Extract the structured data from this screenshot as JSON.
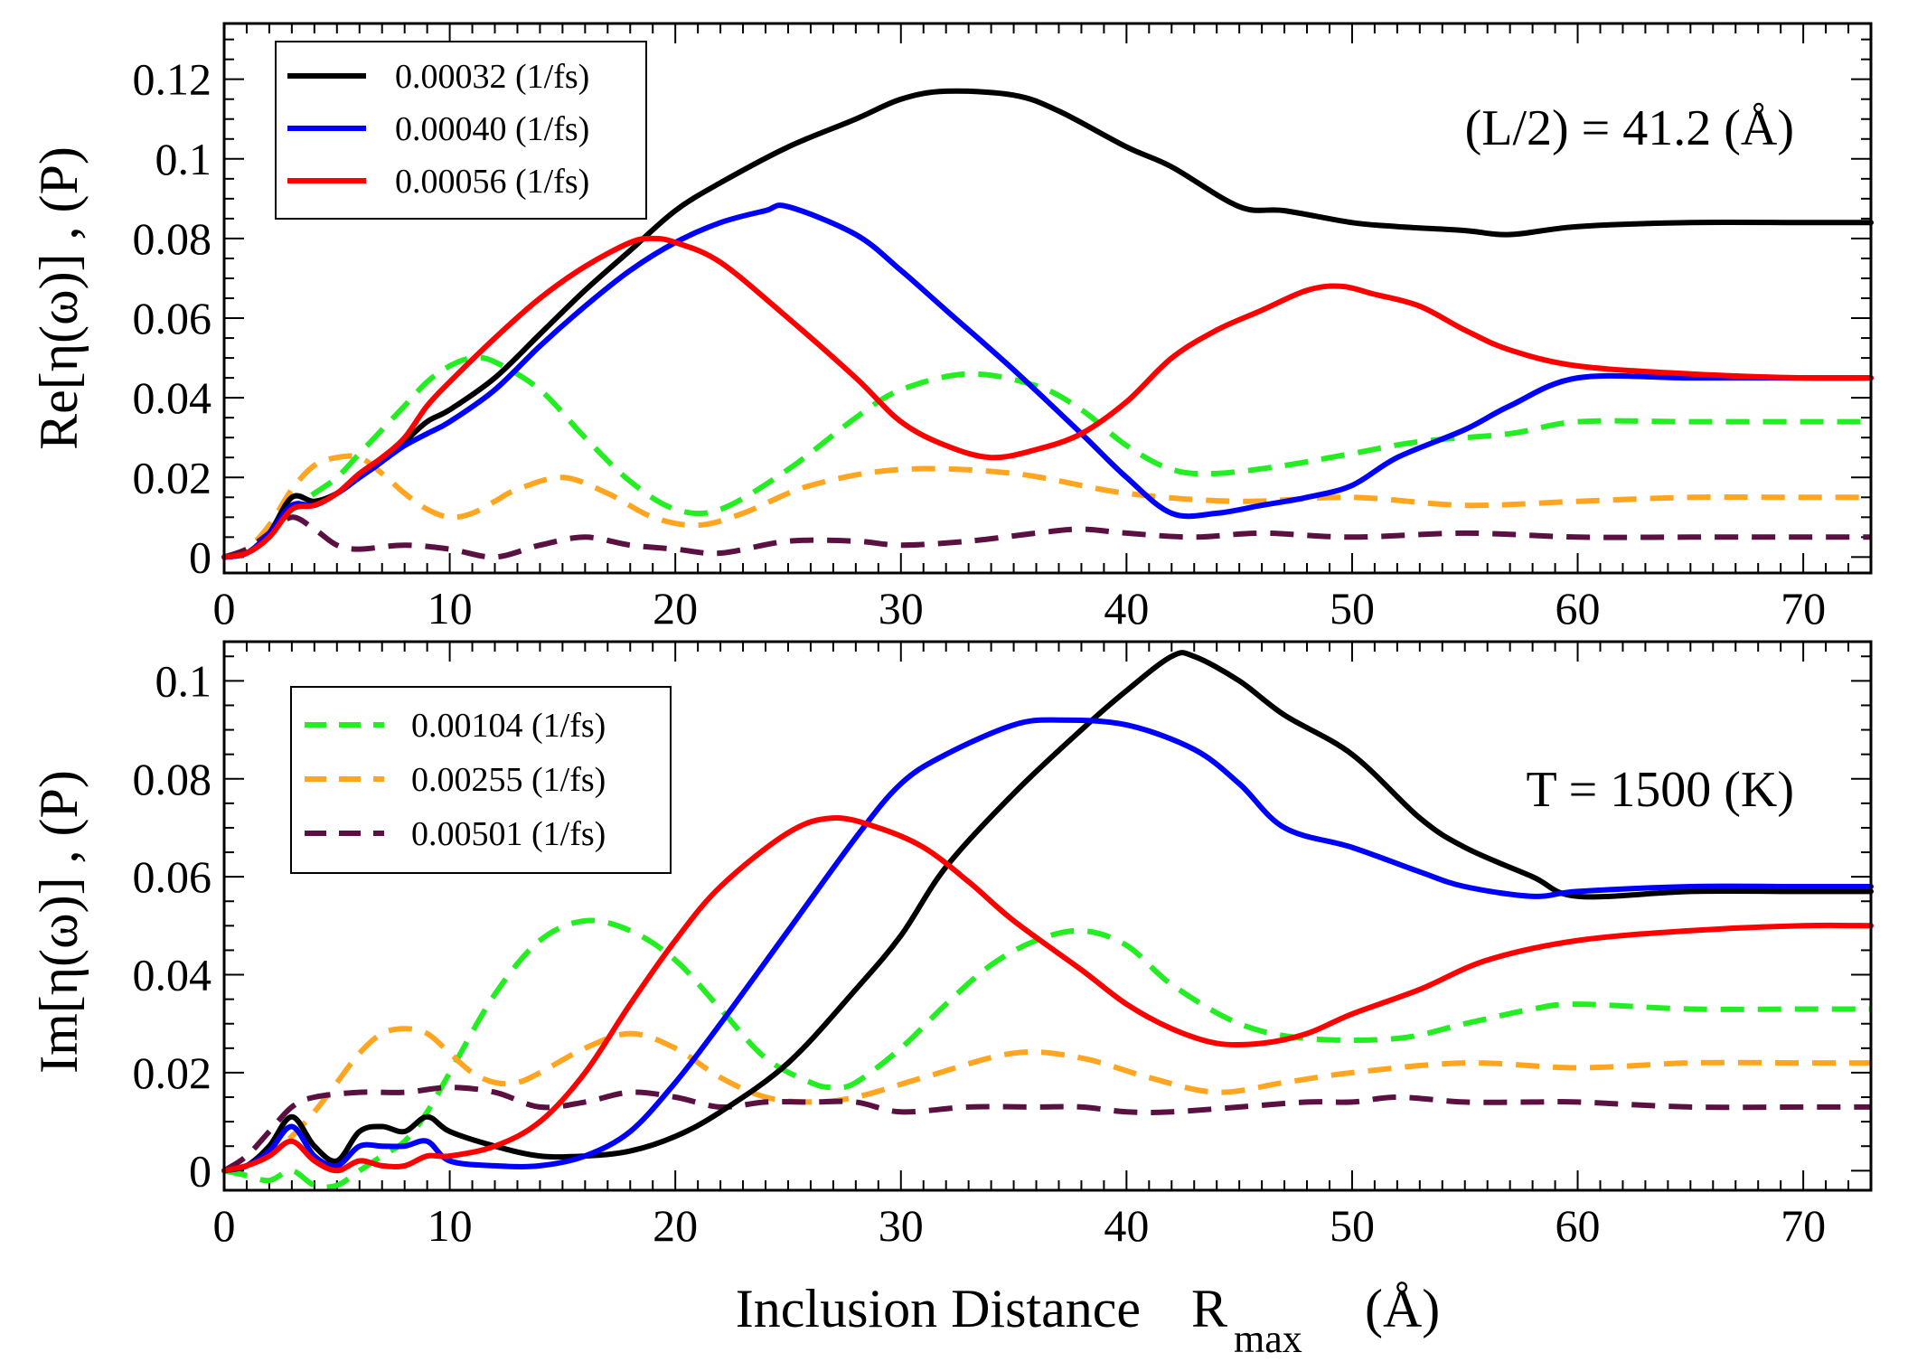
{
  "chart_data": [
    {
      "type": "line",
      "panel": "top",
      "ylabel": "Re[η(ω)] , (P)",
      "xlim": [
        0,
        73
      ],
      "ylim": [
        -0.004,
        0.134
      ],
      "xticks": [
        0,
        10,
        20,
        30,
        40,
        50,
        60,
        70
      ],
      "yticks": [
        0,
        0.02,
        0.04,
        0.06,
        0.08,
        0.1,
        0.12
      ],
      "ytick_labels": [
        "0",
        "0.02",
        "0.04",
        "0.06",
        "0.08",
        "0.1",
        "0.12"
      ],
      "annotation": "(L/2) = 41.2 (Å)",
      "legend": [
        "0.00032 (1/fs)",
        "0.00040 (1/fs)",
        "0.00056 (1/fs)"
      ],
      "series": [
        {
          "name": "0.00032 (1/fs)",
          "color": "#000000",
          "dash": "solid",
          "x": [
            0,
            1,
            2,
            3,
            4,
            5,
            6,
            7,
            8,
            9,
            10,
            12,
            14,
            16,
            18,
            20,
            22,
            25,
            28,
            30,
            32,
            35,
            37,
            40,
            42,
            45,
            47,
            50,
            52,
            55,
            57,
            60,
            65,
            70,
            73
          ],
          "y": [
            0,
            0.001,
            0.006,
            0.015,
            0.014,
            0.016,
            0.02,
            0.024,
            0.029,
            0.034,
            0.037,
            0.045,
            0.056,
            0.067,
            0.077,
            0.087,
            0.094,
            0.103,
            0.11,
            0.115,
            0.117,
            0.116,
            0.112,
            0.103,
            0.098,
            0.088,
            0.087,
            0.084,
            0.083,
            0.082,
            0.081,
            0.083,
            0.084,
            0.084,
            0.084
          ]
        },
        {
          "name": "0.00040 (1/fs)",
          "color": "#0000ff",
          "dash": "solid",
          "x": [
            0,
            1,
            2,
            3,
            4,
            5,
            6,
            7,
            8,
            9,
            10,
            12,
            14,
            16,
            18,
            20,
            22,
            24,
            25,
            28,
            30,
            32,
            35,
            38,
            40,
            42,
            44,
            46,
            48,
            50,
            52,
            55,
            57,
            60,
            65,
            70,
            73
          ],
          "y": [
            0,
            0.001,
            0.006,
            0.013,
            0.013,
            0.016,
            0.02,
            0.024,
            0.028,
            0.031,
            0.034,
            0.042,
            0.053,
            0.063,
            0.072,
            0.079,
            0.084,
            0.087,
            0.088,
            0.081,
            0.072,
            0.062,
            0.047,
            0.031,
            0.02,
            0.011,
            0.011,
            0.013,
            0.015,
            0.018,
            0.025,
            0.032,
            0.038,
            0.045,
            0.045,
            0.045,
            0.045
          ]
        },
        {
          "name": "0.00056 (1/fs)",
          "color": "#ff0000",
          "dash": "solid",
          "x": [
            0,
            1,
            2,
            3,
            4,
            5,
            6,
            7,
            8,
            9,
            10,
            12,
            14,
            16,
            18,
            19,
            20,
            22,
            25,
            28,
            30,
            32,
            34,
            36,
            38,
            40,
            42,
            44,
            46,
            48,
            49.5,
            51,
            53,
            55,
            57,
            60,
            65,
            70,
            73
          ],
          "y": [
            0,
            0.001,
            0.005,
            0.012,
            0.013,
            0.016,
            0.021,
            0.025,
            0.03,
            0.038,
            0.044,
            0.055,
            0.065,
            0.073,
            0.079,
            0.08,
            0.079,
            0.074,
            0.06,
            0.045,
            0.034,
            0.028,
            0.025,
            0.027,
            0.031,
            0.039,
            0.05,
            0.057,
            0.062,
            0.067,
            0.068,
            0.066,
            0.063,
            0.057,
            0.052,
            0.048,
            0.046,
            0.045,
            0.045
          ]
        }
      ]
    },
    {
      "type": "line",
      "panel": "bottom",
      "ylabel": "Im[η(ω)] , (P)",
      "xlabel": "Inclusion Distance",
      "xlabel_symbol": "R",
      "xlabel_subscript": "max",
      "xlabel_unit": "(Å)",
      "xlim": [
        0,
        73
      ],
      "ylim": [
        -0.004,
        0.108
      ],
      "xticks": [
        0,
        10,
        20,
        30,
        40,
        50,
        60,
        70
      ],
      "yticks": [
        0,
        0.02,
        0.04,
        0.06,
        0.08,
        0.1
      ],
      "ytick_labels": [
        "0",
        "0.02",
        "0.04",
        "0.06",
        "0.08",
        "0.1"
      ],
      "annotation": "T = 1500 (K)",
      "legend": [
        "0.00104 (1/fs)",
        "0.00255 (1/fs)",
        "0.00501 (1/fs)"
      ],
      "series": [
        {
          "name": "0.00032 (1/fs)",
          "color": "#000000",
          "dash": "solid",
          "x": [
            0,
            1,
            2,
            3,
            4,
            5,
            6,
            7,
            8,
            9,
            10,
            12,
            14,
            16,
            18,
            20,
            22,
            25,
            28,
            30,
            32,
            35,
            38,
            40,
            42,
            43,
            45,
            47,
            50,
            53,
            55,
            58,
            60,
            65,
            70,
            73
          ],
          "y": [
            0,
            0.001,
            0.005,
            0.011,
            0.005,
            0.002,
            0.008,
            0.009,
            0.008,
            0.011,
            0.008,
            0.005,
            0.003,
            0.003,
            0.004,
            0.007,
            0.012,
            0.022,
            0.037,
            0.048,
            0.062,
            0.077,
            0.09,
            0.098,
            0.105,
            0.105,
            0.1,
            0.093,
            0.085,
            0.072,
            0.066,
            0.06,
            0.056,
            0.057,
            0.057,
            0.057
          ]
        },
        {
          "name": "0.00040 (1/fs)",
          "color": "#0000ff",
          "dash": "solid",
          "x": [
            0,
            1,
            2,
            3,
            4,
            5,
            6,
            7,
            8,
            9,
            10,
            12,
            14,
            16,
            18,
            20,
            22,
            25,
            28,
            30,
            32,
            35,
            37,
            40,
            43,
            45,
            47,
            50,
            53,
            55,
            58,
            60,
            65,
            70,
            73
          ],
          "y": [
            0,
            0.001,
            0.004,
            0.009,
            0.003,
            0.001,
            0.005,
            0.005,
            0.005,
            0.006,
            0.002,
            0.001,
            0.001,
            0.003,
            0.008,
            0.018,
            0.03,
            0.049,
            0.068,
            0.079,
            0.085,
            0.091,
            0.092,
            0.091,
            0.086,
            0.079,
            0.07,
            0.066,
            0.061,
            0.058,
            0.056,
            0.057,
            0.058,
            0.058,
            0.058
          ]
        },
        {
          "name": "0.00056 (1/fs)",
          "color": "#ff0000",
          "dash": "solid",
          "x": [
            0,
            1,
            2,
            3,
            4,
            5,
            6,
            7,
            8,
            9,
            10,
            12,
            14,
            16,
            18,
            20,
            22,
            25,
            27,
            29,
            31,
            33,
            35,
            38,
            40,
            42,
            44,
            46,
            48,
            50,
            53,
            56,
            60,
            65,
            70,
            73
          ],
          "y": [
            0,
            0.001,
            0.003,
            0.006,
            0.002,
            0.0,
            0.002,
            0.001,
            0.001,
            0.003,
            0.003,
            0.005,
            0.01,
            0.02,
            0.034,
            0.047,
            0.058,
            0.069,
            0.072,
            0.07,
            0.066,
            0.059,
            0.051,
            0.041,
            0.034,
            0.029,
            0.026,
            0.026,
            0.028,
            0.032,
            0.037,
            0.043,
            0.047,
            0.049,
            0.05,
            0.05
          ]
        }
      ]
    }
  ],
  "dashed_series": {
    "top": [
      {
        "name": "0.00104 (1/fs)",
        "color": "#22ee22",
        "x": [
          0,
          1,
          2,
          3,
          4,
          5,
          6,
          7,
          8,
          9,
          10,
          11,
          12,
          14,
          16,
          18,
          20,
          22,
          25,
          28,
          30,
          33,
          36,
          38,
          40,
          42,
          44,
          47,
          50,
          53,
          57,
          60,
          65,
          70,
          73
        ],
        "y": [
          0,
          0.001,
          0.005,
          0.012,
          0.016,
          0.02,
          0.026,
          0.032,
          0.038,
          0.044,
          0.048,
          0.05,
          0.049,
          0.042,
          0.03,
          0.019,
          0.012,
          0.012,
          0.022,
          0.035,
          0.042,
          0.046,
          0.043,
          0.037,
          0.028,
          0.022,
          0.021,
          0.023,
          0.026,
          0.029,
          0.031,
          0.034,
          0.034,
          0.034,
          0.034
        ]
      },
      {
        "name": "0.00255 (1/fs)",
        "color": "#ffa520",
        "x": [
          0,
          1,
          2,
          3,
          4,
          5,
          6,
          7,
          8,
          9,
          10,
          11,
          12,
          13,
          15,
          17,
          19,
          21,
          23,
          26,
          30,
          35,
          40,
          45,
          50,
          55,
          60,
          65,
          70,
          73
        ],
        "y": [
          0,
          0.002,
          0.008,
          0.017,
          0.023,
          0.025,
          0.025,
          0.021,
          0.016,
          0.012,
          0.01,
          0.011,
          0.014,
          0.017,
          0.02,
          0.016,
          0.01,
          0.008,
          0.011,
          0.018,
          0.022,
          0.021,
          0.016,
          0.014,
          0.015,
          0.013,
          0.014,
          0.015,
          0.015,
          0.015
        ]
      },
      {
        "name": "0.00501 (1/fs)",
        "color": "#5a1040",
        "x": [
          0,
          1,
          2,
          3,
          4,
          5,
          6,
          8,
          10,
          12,
          14,
          16,
          18,
          20,
          22,
          25,
          28,
          30,
          33,
          36,
          38,
          40,
          43,
          46,
          50,
          55,
          60,
          65,
          70,
          73
        ],
        "y": [
          0,
          0.002,
          0.006,
          0.01,
          0.007,
          0.003,
          0.002,
          0.003,
          0.002,
          0.0,
          0.003,
          0.005,
          0.003,
          0.002,
          0.001,
          0.004,
          0.004,
          0.003,
          0.004,
          0.006,
          0.007,
          0.006,
          0.005,
          0.006,
          0.005,
          0.006,
          0.005,
          0.005,
          0.005,
          0.005
        ]
      }
    ],
    "bottom": [
      {
        "name": "0.00104 (1/fs)",
        "color": "#22ee22",
        "x": [
          0,
          1,
          2,
          3,
          4,
          5,
          6,
          7,
          8,
          9,
          10,
          12,
          14,
          16,
          18,
          20,
          22,
          24,
          26,
          27,
          28,
          30,
          32,
          34,
          36,
          38,
          40,
          42,
          45,
          48,
          52,
          55,
          58,
          60,
          65,
          70,
          73
        ],
        "y": [
          0,
          -0.001,
          -0.002,
          0.0,
          -0.003,
          -0.003,
          0.0,
          0.003,
          0.006,
          0.012,
          0.02,
          0.036,
          0.047,
          0.051,
          0.049,
          0.043,
          0.033,
          0.023,
          0.018,
          0.017,
          0.018,
          0.025,
          0.034,
          0.042,
          0.047,
          0.049,
          0.046,
          0.038,
          0.03,
          0.027,
          0.027,
          0.03,
          0.033,
          0.034,
          0.033,
          0.033,
          0.033
        ]
      },
      {
        "name": "0.00255 (1/fs)",
        "color": "#ffa520",
        "x": [
          0,
          1,
          2,
          3,
          4,
          5,
          6,
          7,
          8,
          9,
          10,
          11,
          12,
          13,
          14,
          16,
          18,
          20,
          22,
          24,
          26,
          28,
          31,
          35,
          38,
          41,
          44,
          47,
          50,
          55,
          60,
          65,
          70,
          73
        ],
        "y": [
          0,
          0.001,
          0.003,
          0.007,
          0.012,
          0.018,
          0.024,
          0.028,
          0.029,
          0.028,
          0.024,
          0.02,
          0.018,
          0.018,
          0.02,
          0.025,
          0.028,
          0.025,
          0.019,
          0.015,
          0.014,
          0.015,
          0.019,
          0.024,
          0.023,
          0.019,
          0.016,
          0.018,
          0.02,
          0.022,
          0.021,
          0.022,
          0.022,
          0.022
        ]
      },
      {
        "name": "0.00501 (1/fs)",
        "color": "#5a1040",
        "x": [
          0,
          1,
          2,
          3,
          4,
          6,
          8,
          10,
          12,
          14,
          16,
          18,
          20,
          22,
          24,
          26,
          28,
          30,
          33,
          36,
          38,
          40,
          42,
          45,
          48,
          50,
          52,
          55,
          58,
          60,
          65,
          70,
          73
        ],
        "y": [
          0,
          0.003,
          0.008,
          0.013,
          0.015,
          0.016,
          0.016,
          0.017,
          0.016,
          0.013,
          0.014,
          0.016,
          0.015,
          0.013,
          0.014,
          0.014,
          0.014,
          0.012,
          0.013,
          0.013,
          0.013,
          0.012,
          0.012,
          0.013,
          0.014,
          0.014,
          0.015,
          0.014,
          0.014,
          0.014,
          0.013,
          0.013,
          0.013
        ]
      }
    ]
  }
}
